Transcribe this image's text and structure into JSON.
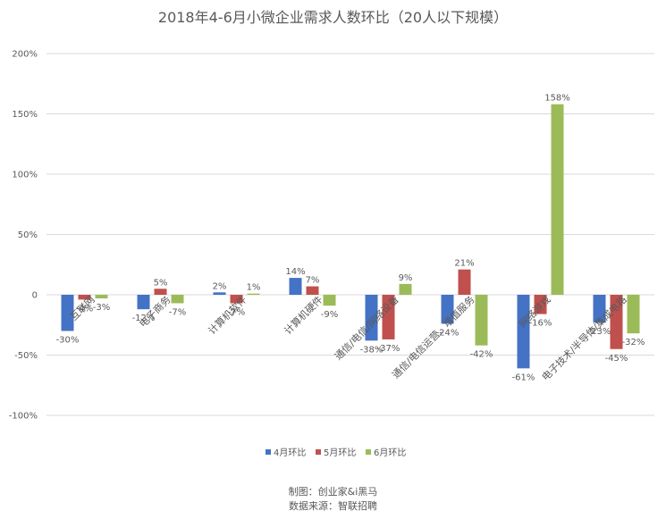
{
  "chart_data": {
    "type": "bar",
    "title": "2018年4-6月小微企业需求人数环比（20人以下规模）",
    "categories": [
      "互联网",
      "电子商务",
      "计算机软件",
      "计算机硬件",
      "通信/电信/网络设备",
      "通信/电信运营、增值服务",
      "网络游戏",
      "电子技术/半导体/集成电路"
    ],
    "series": [
      {
        "name": "4月环比",
        "color": "#4472C4",
        "values": [
          -30,
          -12,
          2,
          14,
          -38,
          -24,
          -61,
          -23
        ],
        "labels": [
          "-30%",
          "-12%",
          "2%",
          "14%",
          "-38%",
          "-24%",
          "-61%",
          "-23%"
        ]
      },
      {
        "name": "5月环比",
        "color": "#C0504D",
        "values": [
          -4,
          5,
          -7,
          7,
          -37,
          21,
          -16,
          -45
        ],
        "labels": [
          "-4%",
          "5%",
          "-7%",
          "7%",
          "-37%",
          "21%",
          "-16%",
          "-45%"
        ]
      },
      {
        "name": "6月环比",
        "color": "#9BBB59",
        "values": [
          -3,
          -7,
          1,
          -9,
          9,
          -42,
          158,
          -32
        ],
        "labels": [
          "-3%",
          "-7%",
          "1%",
          "-9%",
          "9%",
          "-42%",
          "158%",
          "-32%"
        ]
      }
    ],
    "ylim": [
      -100,
      200
    ],
    "yticks": [
      -100,
      -50,
      0,
      50,
      100,
      150,
      200
    ],
    "ytick_labels": [
      "-100%",
      "-50%",
      "0",
      "50%",
      "100%",
      "150%",
      "200%"
    ],
    "grid": true,
    "legend_position": "bottom"
  },
  "footer": {
    "credit": "制图：创业家&i黑马",
    "source": "数据来源：智联招聘"
  }
}
